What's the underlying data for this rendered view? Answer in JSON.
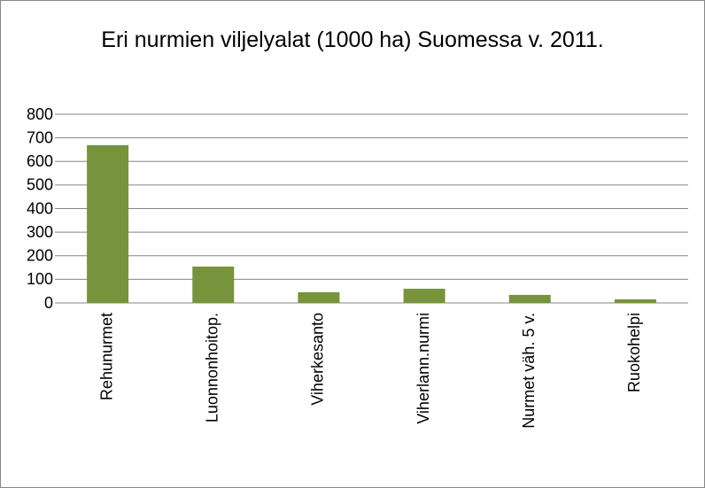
{
  "chart_data": {
    "type": "bar",
    "title": "Eri nurmien viljelyalat (1000 ha) Suomessa v. 2011.",
    "categories": [
      "Rehunurmet",
      "Luonnonhoitop.",
      "Viherkesanto",
      "Viherlann.nurmi",
      "Nurmet väh. 5 v.",
      "Ruokohelpi"
    ],
    "values": [
      669,
      154,
      45,
      60,
      34,
      15
    ],
    "color": "#77933c",
    "ylim": [
      0,
      800
    ],
    "yticks": [
      0,
      100,
      200,
      300,
      400,
      500,
      600,
      700,
      800
    ],
    "grid": true
  }
}
